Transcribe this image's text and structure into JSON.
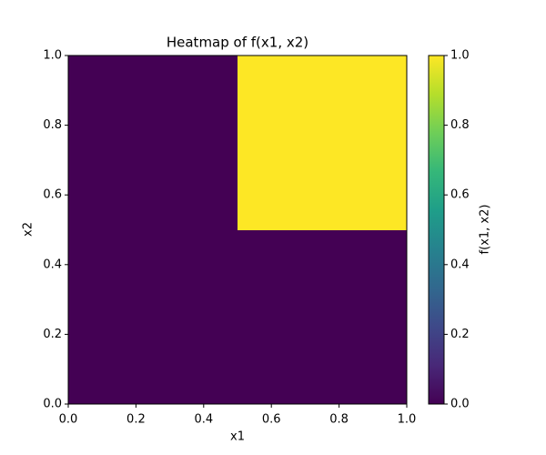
{
  "chart_data": {
    "type": "heatmap",
    "title": "Heatmap of f(x1, x2)",
    "xlabel": "x1",
    "ylabel": "x2",
    "x_edges": [
      0,
      0.5,
      1
    ],
    "y_edges": [
      0,
      0.5,
      1
    ],
    "values": [
      [
        0,
        0
      ],
      [
        0,
        1
      ]
    ],
    "xlim": [
      0,
      1
    ],
    "ylim": [
      0,
      1
    ],
    "xticks": [
      {
        "value": 0,
        "label": "0.0"
      },
      0.2,
      0.4,
      0.6,
      0.8,
      {
        "value": 1,
        "label": "1.0"
      }
    ],
    "yticks": [
      {
        "value": 0,
        "label": "0.0"
      },
      0.2,
      0.4,
      0.6,
      0.8,
      {
        "value": 1,
        "label": "1.0"
      }
    ],
    "colormap": "viridis",
    "colorbar": {
      "label": "f(x1, x2)",
      "lim": [
        0,
        1
      ],
      "ticks": [
        {
          "value": 0,
          "label": "0.0"
        },
        0.2,
        0.4,
        0.6,
        0.8,
        {
          "value": 1,
          "label": "1.0"
        }
      ]
    }
  }
}
